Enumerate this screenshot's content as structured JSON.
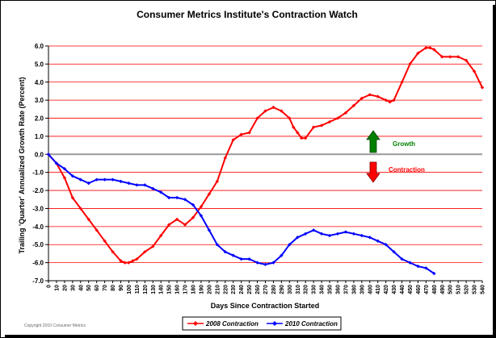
{
  "colors": {
    "gridline": "#ff0000",
    "zero_line": "#999999",
    "series_2008": "#ff0000",
    "series_2010": "#0000ff",
    "growth": "#008000",
    "contraction": "#ff0000"
  },
  "copyright": "Copyright 2010 Consumer Metrics",
  "chart_data": {
    "type": "line",
    "title": "Consumer Metrics Institute's Contraction Watch",
    "xlabel": "Days Since Contraction Started",
    "ylabel": "Trailing 'Quarter' Annualized Growth Rate (Percent)",
    "xlim": [
      0,
      540
    ],
    "ylim": [
      -7,
      6
    ],
    "x_ticks": [
      0,
      10,
      20,
      30,
      40,
      50,
      60,
      70,
      80,
      90,
      100,
      110,
      120,
      130,
      140,
      150,
      160,
      170,
      180,
      190,
      200,
      210,
      220,
      230,
      240,
      250,
      260,
      270,
      280,
      290,
      300,
      310,
      320,
      330,
      340,
      350,
      360,
      370,
      380,
      390,
      400,
      410,
      420,
      430,
      440,
      450,
      460,
      470,
      480,
      490,
      500,
      510,
      520,
      530,
      540
    ],
    "y_ticks": [
      "6.0",
      "5.0",
      "4.0",
      "3.0",
      "2.0",
      "1.0",
      "0.0",
      "-1.0",
      "-2.0",
      "-3.0",
      "-4.0",
      "-5.0",
      "-6.0",
      "-7.0"
    ],
    "y_tick_values": [
      6,
      5,
      4,
      3,
      2,
      1,
      0,
      -1,
      -2,
      -3,
      -4,
      -5,
      -6,
      -7
    ],
    "grid": true,
    "legend_position": "bottom",
    "annotations": [
      {
        "text": "Growth",
        "arrow": "up",
        "color": "#008000"
      },
      {
        "text": "Contraction",
        "arrow": "down",
        "color": "#ff0000"
      }
    ],
    "series": [
      {
        "name": "2008 Contraction",
        "color": "#ff0000",
        "x": [
          0,
          10,
          20,
          30,
          40,
          50,
          60,
          70,
          80,
          90,
          95,
          100,
          105,
          110,
          120,
          130,
          140,
          150,
          160,
          170,
          180,
          190,
          200,
          210,
          220,
          230,
          240,
          250,
          260,
          270,
          280,
          290,
          300,
          305,
          310,
          315,
          320,
          330,
          340,
          350,
          360,
          370,
          380,
          390,
          400,
          410,
          420,
          425,
          430,
          440,
          450,
          460,
          470,
          475,
          480,
          490,
          500,
          510,
          520,
          530,
          540
        ],
        "y": [
          0,
          -0.5,
          -1.3,
          -2.4,
          -3.0,
          -3.6,
          -4.2,
          -4.8,
          -5.4,
          -5.9,
          -6.0,
          -6.0,
          -5.9,
          -5.8,
          -5.4,
          -5.1,
          -4.5,
          -3.9,
          -3.6,
          -3.9,
          -3.5,
          -2.9,
          -2.2,
          -1.5,
          -0.2,
          0.8,
          1.1,
          1.2,
          2.0,
          2.4,
          2.6,
          2.4,
          2.0,
          1.5,
          1.2,
          0.9,
          0.9,
          1.5,
          1.6,
          1.8,
          2.0,
          2.3,
          2.7,
          3.1,
          3.3,
          3.2,
          3.0,
          2.9,
          3.0,
          4.0,
          5.0,
          5.6,
          5.9,
          5.9,
          5.8,
          5.4,
          5.4,
          5.4,
          5.2,
          4.6,
          3.7
        ]
      },
      {
        "name": "2010 Contraction",
        "color": "#0000ff",
        "x": [
          0,
          10,
          20,
          30,
          40,
          50,
          60,
          70,
          80,
          90,
          100,
          110,
          120,
          130,
          140,
          150,
          160,
          170,
          180,
          190,
          200,
          210,
          220,
          230,
          240,
          250,
          260,
          270,
          280,
          290,
          300,
          310,
          320,
          330,
          340,
          350,
          360,
          370,
          380,
          390,
          400,
          410,
          420,
          430,
          440,
          450,
          460,
          470,
          480
        ],
        "y": [
          0,
          -0.5,
          -0.8,
          -1.2,
          -1.4,
          -1.6,
          -1.4,
          -1.4,
          -1.4,
          -1.5,
          -1.6,
          -1.7,
          -1.7,
          -1.9,
          -2.1,
          -2.4,
          -2.4,
          -2.5,
          -2.8,
          -3.4,
          -4.2,
          -5.0,
          -5.4,
          -5.6,
          -5.8,
          -5.8,
          -6.0,
          -6.1,
          -6.0,
          -5.6,
          -5.0,
          -4.6,
          -4.4,
          -4.2,
          -4.4,
          -4.5,
          -4.4,
          -4.3,
          -4.4,
          -4.5,
          -4.6,
          -4.8,
          -5.0,
          -5.4,
          -5.8,
          -6.0,
          -6.2,
          -6.3,
          -6.6
        ]
      }
    ]
  }
}
